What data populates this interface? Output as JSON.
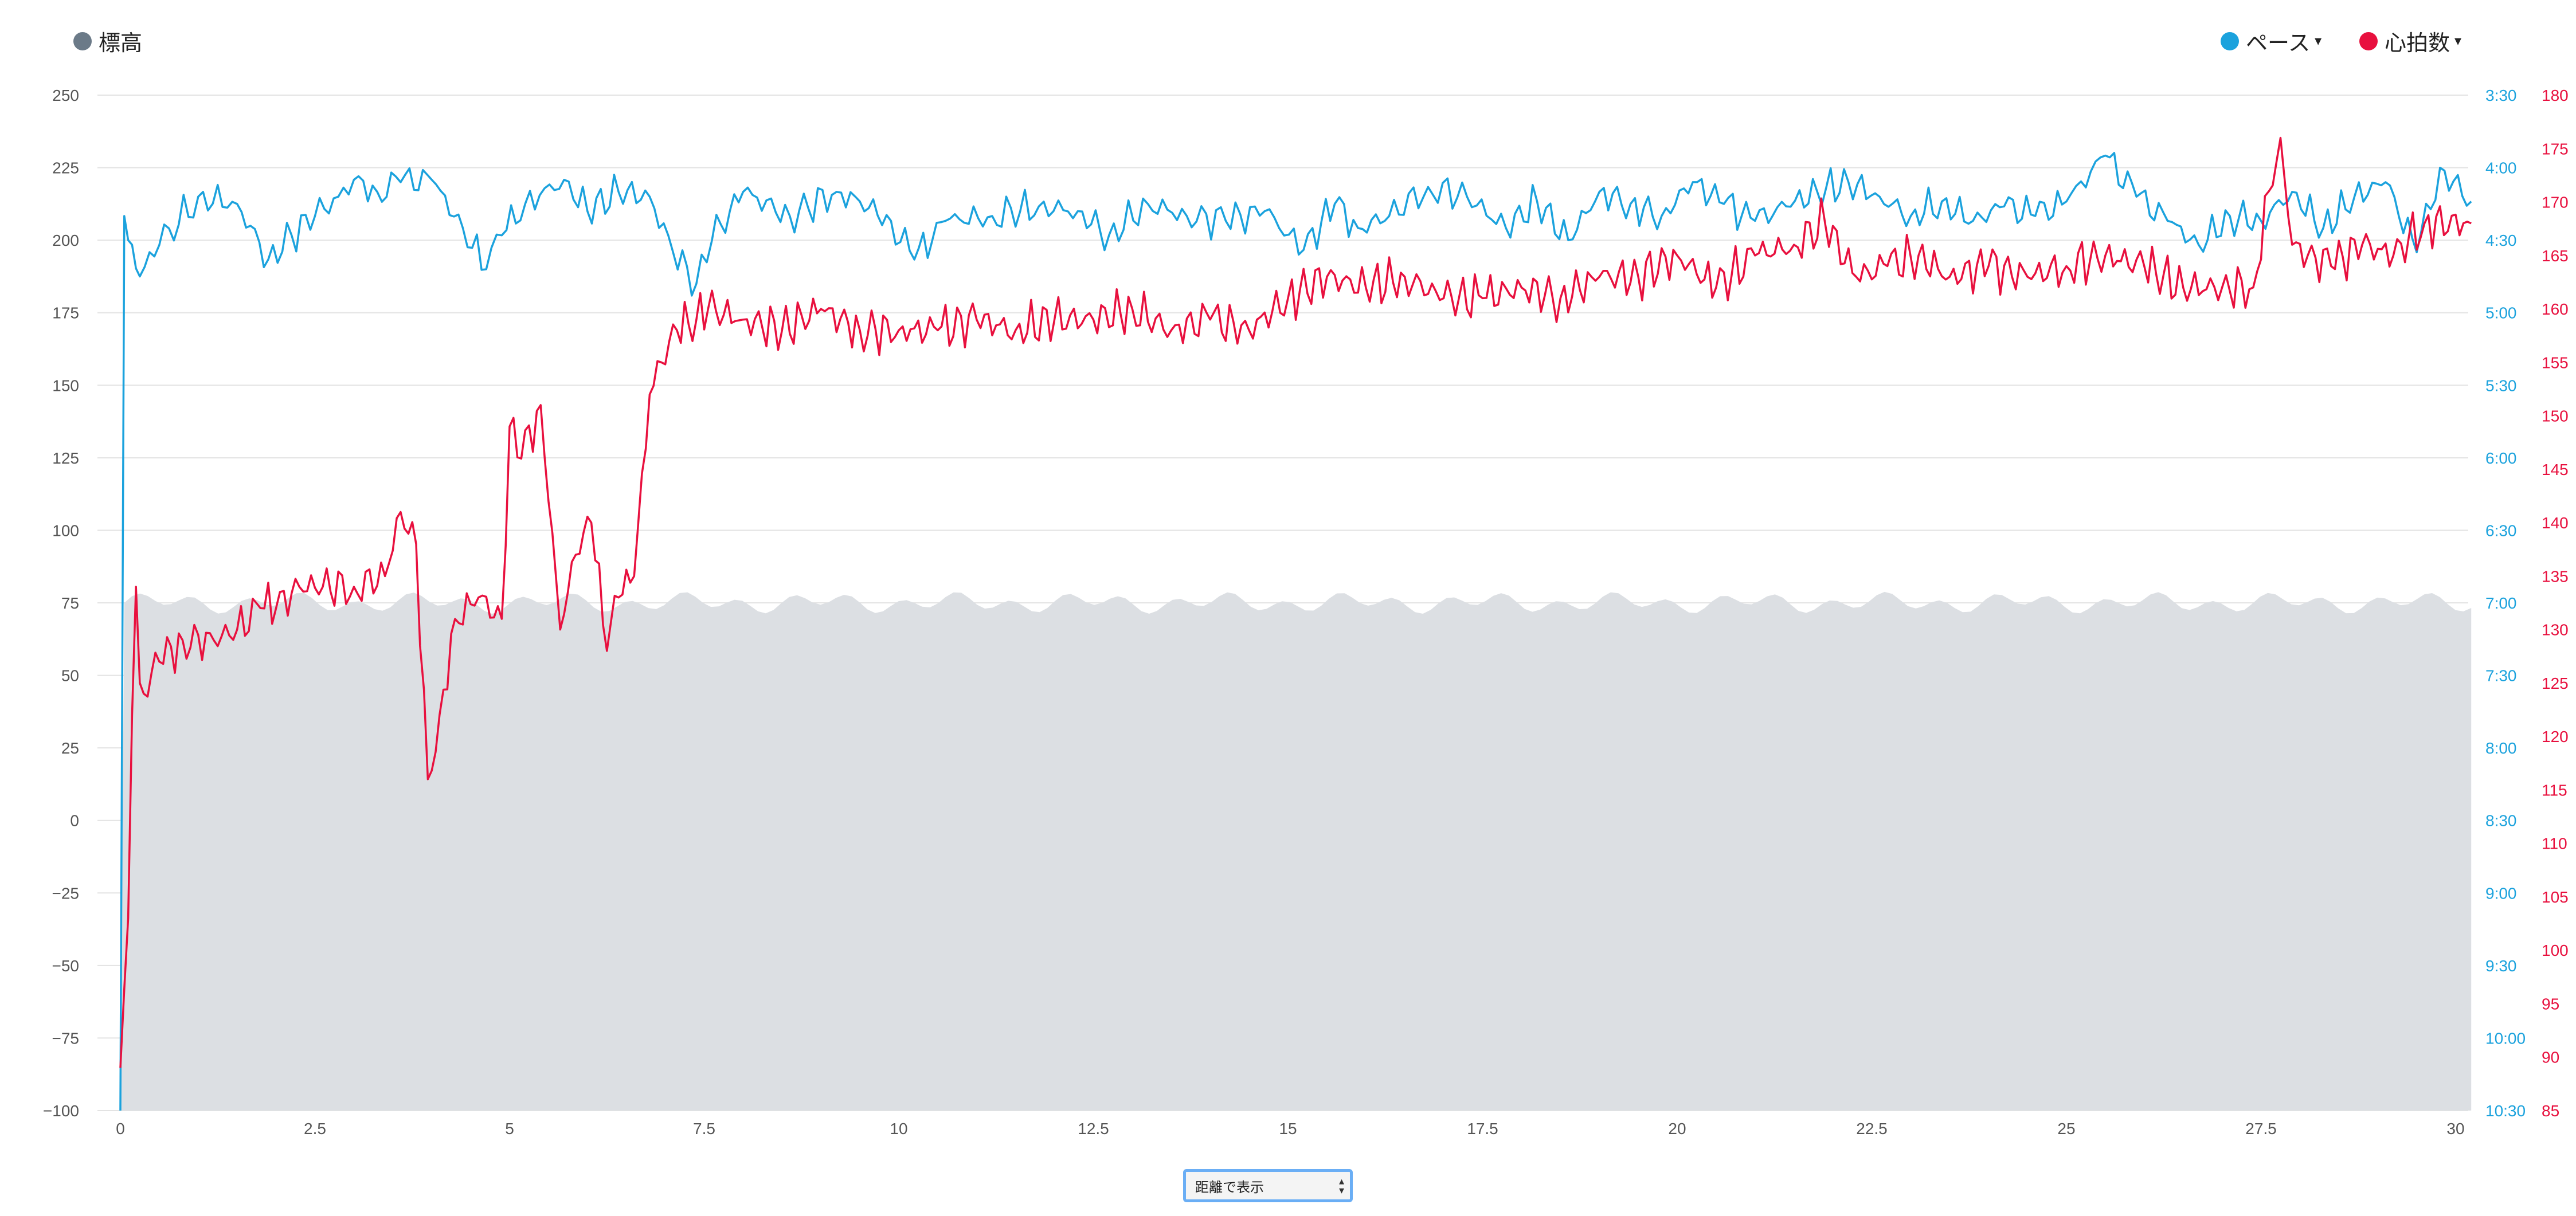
{
  "legend": {
    "elevation": {
      "label": "標高",
      "color": "#6b7a88"
    },
    "pace": {
      "label": "ペース",
      "color": "#1ba2dd",
      "caret": "▾"
    },
    "heart_rate": {
      "label": "心拍数",
      "color": "#e8103e",
      "caret": "▾"
    }
  },
  "controls": {
    "mode_select_value": "距離で表示",
    "mode_select_icon": "updown-arrows-icon"
  },
  "chart_data": {
    "type": "line",
    "x_range": [
      0,
      30
    ],
    "x_ticks": [
      "0",
      "2.5",
      "5",
      "7.5",
      "10",
      "12.5",
      "15",
      "17.5",
      "20",
      "22.5",
      "25",
      "27.5",
      "30"
    ],
    "grid": true,
    "legend_position": "top",
    "axes": {
      "elevation": {
        "side": "left",
        "range": [
          -100,
          250
        ],
        "ticks": [
          "250",
          "225",
          "200",
          "175",
          "150",
          "125",
          "100",
          "75",
          "50",
          "25",
          "0",
          "−25",
          "−50",
          "−75",
          "−100"
        ]
      },
      "pace": {
        "side": "right",
        "range_seconds_per_km": [
          210,
          630
        ],
        "reversed": true,
        "ticks": [
          "3:30",
          "4:00",
          "4:30",
          "5:00",
          "5:30",
          "6:00",
          "6:30",
          "7:00",
          "7:30",
          "8:00",
          "8:30",
          "9:00",
          "9:30",
          "10:00",
          "10:30"
        ]
      },
      "heart_rate": {
        "side": "far-right",
        "range": [
          85,
          180
        ],
        "ticks": [
          "180",
          "175",
          "170",
          "165",
          "160",
          "155",
          "150",
          "145",
          "140",
          "135",
          "130",
          "125",
          "120",
          "115",
          "110",
          "105",
          "100",
          "95",
          "90",
          "85"
        ]
      }
    },
    "series": [
      {
        "name": "標高",
        "type": "area",
        "color": "#dcdfe3",
        "x": [
          0,
          0.05,
          30.2
        ],
        "y": [
          -100,
          75,
          75
        ]
      },
      {
        "name": "ペース",
        "type": "line",
        "color": "#1ba2dd",
        "unit": "min/km",
        "x": [
          0,
          0.05,
          0.1,
          0.25,
          0.5,
          1,
          1.5,
          1.9,
          2.2,
          2.5,
          2.8,
          3,
          3.3,
          3.6,
          4,
          4.4,
          4.7,
          4.9,
          5.2,
          5.7,
          6,
          6.4,
          6.8,
          7.1,
          7.4,
          7.6,
          8,
          8.6,
          9.2,
          9.5,
          9.9,
          10.2,
          10.6,
          11.2,
          11.8,
          12.3,
          12.7,
          13.2,
          13.7,
          14.2,
          14.7,
          15.2,
          15.6,
          15.9,
          16.3,
          16.8,
          17.3,
          17.8,
          18.2,
          18.6,
          19.0,
          19.4,
          19.8,
          20.2,
          20.6,
          21.0,
          21.4,
          21.8,
          22.2,
          22.6,
          23.0,
          23.4,
          23.8,
          24.2,
          24.6,
          25.0,
          25.5,
          25.9,
          26.3,
          26.7,
          27.1,
          27.5,
          27.9,
          28.3,
          28.7,
          29.1,
          29.5,
          29.8,
          30.2
        ],
        "y": [
          "10:30",
          "4:20",
          "4:30",
          "4:45",
          "4:32",
          "4:12",
          "4:15",
          "4:38",
          "4:28",
          "4:20",
          "4:12",
          "4:05",
          "4:10",
          "4:06",
          "4:05",
          "4:25",
          "4:42",
          "4:28",
          "4:15",
          "4:05",
          "4:18",
          "4:10",
          "4:12",
          "4:35",
          "4:48",
          "4:30",
          "4:10",
          "4:20",
          "4:10",
          "4:14",
          "4:22",
          "4:38",
          "4:22",
          "4:20",
          "4:16",
          "4:18",
          "4:28",
          "4:15",
          "4:20",
          "4:22",
          "4:18",
          "4:34",
          "4:15",
          "4:25",
          "4:20",
          "4:08",
          "4:12",
          "4:25",
          "4:14",
          "4:30",
          "4:10",
          "4:15",
          "4:20",
          "4:06",
          "4:15",
          "4:22",
          "4:16",
          "4:10",
          "4:06",
          "4:12",
          "4:20",
          "4:14",
          "4:22",
          "4:16",
          "4:20",
          "4:14",
          "3:55",
          "4:12",
          "4:22",
          "4:32",
          "4:20",
          "4:22",
          "4:10",
          "4:25",
          "4:12",
          "4:06",
          "4:35",
          "4:00",
          "4:14"
        ]
      },
      {
        "name": "心拍数",
        "type": "line",
        "color": "#e8103e",
        "unit": "bpm",
        "x": [
          0,
          0.1,
          0.15,
          0.2,
          0.25,
          0.3,
          0.5,
          0.8,
          1.2,
          1.5,
          1.8,
          2.0,
          2.3,
          2.6,
          3.0,
          3.4,
          3.6,
          3.8,
          3.95,
          4.1,
          4.3,
          4.6,
          4.9,
          5.0,
          5.15,
          5.4,
          5.5,
          5.65,
          5.85,
          6.05,
          6.25,
          6.4,
          6.6,
          6.8,
          6.95,
          7.15,
          7.4,
          7.55,
          8,
          8.5,
          9,
          9.5,
          10,
          10.5,
          11,
          11.5,
          12,
          12.5,
          13,
          13.5,
          14,
          14.5,
          15,
          15.5,
          16,
          16.5,
          17,
          17.5,
          18,
          18.5,
          19,
          19.5,
          20,
          20.5,
          21,
          21.5,
          21.9,
          22.3,
          22.7,
          23.1,
          23.5,
          24,
          24.5,
          25,
          25.5,
          26,
          26.5,
          27,
          27.4,
          27.6,
          27.75,
          27.9,
          28.1,
          28.4,
          28.8,
          29.2,
          29.6,
          30.2
        ],
        "y": [
          89,
          103,
          122,
          134,
          125,
          124,
          127,
          129,
          129,
          130,
          132,
          132,
          134,
          134,
          134,
          135,
          141,
          138,
          116,
          122,
          131,
          133,
          131,
          149,
          146,
          151,
          142,
          130,
          137,
          140,
          128,
          133,
          135,
          152,
          155,
          158,
          159,
          160,
          159,
          158,
          160,
          158,
          158,
          158,
          159,
          158,
          159,
          159,
          160,
          158,
          159,
          158,
          161,
          163,
          162,
          163,
          161,
          161,
          162,
          161,
          163,
          163,
          165,
          162,
          165,
          166,
          168,
          163,
          164,
          165,
          163,
          164,
          163,
          164,
          165,
          164,
          162,
          162,
          162,
          171,
          176,
          166,
          165,
          164,
          166,
          165,
          168,
          168
        ]
      }
    ]
  }
}
